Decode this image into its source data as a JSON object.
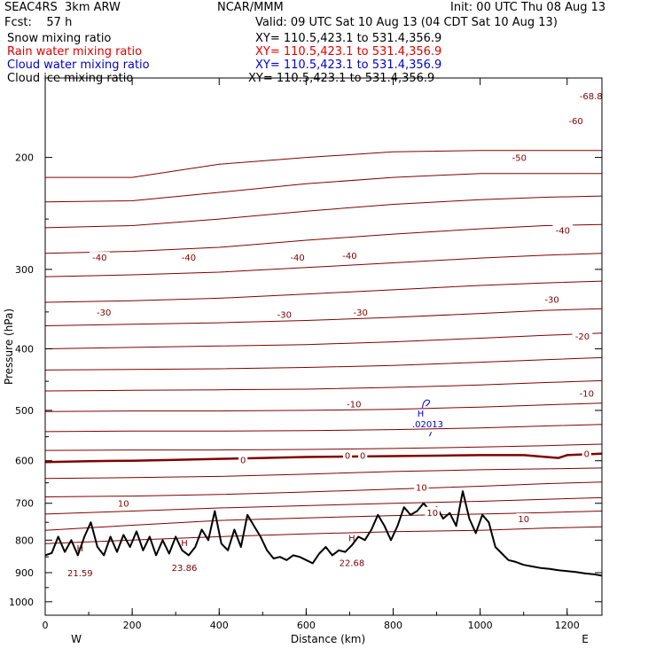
{
  "header": {
    "model": "SEAC4RS  3km ARW",
    "org": "NCAR/MMM",
    "init": "Init: 00 UTC Thu 08 Aug 13",
    "fcst": "Fcst:    57 h",
    "valid": "Valid: 09 UTC Sat 10 Aug 13 (04 CDT Sat 10 Aug 13)"
  },
  "legend": [
    {
      "name": "Snow mixing ratio",
      "xy": "XY= 110.5,423.1 to 531.4,356.9",
      "color": "#000000"
    },
    {
      "name": "Rain water mixing ratio",
      "xy": "XY= 110.5,423.1 to 531.4,356.9",
      "color": "#e00000"
    },
    {
      "name": "Cloud water mixing ratio",
      "xy": "XY= 110.5,423.1 to 531.4,356.9",
      "color": "#0000d0"
    },
    {
      "name": "Cloud ice mixing ratio",
      "xy": "XY= 110.5,423.1 to 531.4,356.9",
      "color": "#000000"
    }
  ],
  "chart_data": {
    "type": "line",
    "xlabel": "Distance (km)",
    "ylabel": "Pressure (hPa)",
    "xlim": [
      0,
      1280
    ],
    "ylim": [
      150,
      1050
    ],
    "y_scale": "log",
    "x_ticks": [
      "0",
      "200",
      "400",
      "600",
      "800",
      "1000",
      "1200"
    ],
    "y_ticks": [
      "200",
      "300",
      "400",
      "500",
      "600",
      "700",
      "800",
      "900",
      "1000"
    ],
    "x_end_labels": {
      "left": "W",
      "right": "E"
    },
    "isotherm_color": "#800000",
    "isotherms": [
      {
        "x": [
          0,
          200,
          400,
          600,
          800,
          1000,
          1150,
          1280
        ],
        "y": [
          215,
          215,
          205,
          200,
          196,
          195,
          195,
          195
        ]
      },
      {
        "x": [
          0,
          200,
          400,
          600,
          800,
          1000,
          1150,
          1280
        ],
        "y": [
          235,
          234,
          227,
          220,
          215,
          212,
          212,
          212
        ]
      },
      {
        "x": [
          0,
          200,
          400,
          600,
          800,
          1000,
          1150,
          1280
        ],
        "y": [
          258,
          256,
          250,
          243,
          237,
          233,
          231,
          230
        ]
      },
      {
        "x": [
          0,
          200,
          400,
          600,
          800,
          1000,
          1150,
          1280
        ],
        "y": [
          283,
          281,
          277,
          270,
          264,
          259,
          256,
          255
        ]
      },
      {
        "x": [
          0,
          200,
          400,
          600,
          800,
          1000,
          1150,
          1280
        ],
        "y": [
          308,
          306,
          303,
          298,
          293,
          288,
          285,
          283
        ]
      },
      {
        "x": [
          0,
          200,
          400,
          600,
          800,
          1000,
          1150,
          1280
        ],
        "y": [
          338,
          336,
          333,
          328,
          323,
          318,
          315,
          313
        ]
      },
      {
        "x": [
          0,
          200,
          400,
          600,
          800,
          1000,
          1150,
          1280
        ],
        "y": [
          368,
          366,
          364,
          361,
          357,
          352,
          348,
          346
        ]
      },
      {
        "x": [
          0,
          200,
          400,
          600,
          800,
          1000,
          1150,
          1280
        ],
        "y": [
          400,
          398,
          396,
          394,
          390,
          385,
          381,
          378
        ]
      },
      {
        "x": [
          0,
          200,
          400,
          600,
          800,
          1000,
          1150,
          1280
        ],
        "y": [
          432,
          431,
          430,
          428,
          425,
          420,
          416,
          413
        ]
      },
      {
        "x": [
          0,
          200,
          400,
          600,
          800,
          1000,
          1150,
          1280
        ],
        "y": [
          466,
          465,
          464,
          463,
          460,
          456,
          452,
          449
        ]
      },
      {
        "x": [
          0,
          200,
          400,
          600,
          800,
          1000,
          1150,
          1280
        ],
        "y": [
          502,
          501,
          501,
          500,
          498,
          494,
          490,
          487
        ]
      },
      {
        "x": [
          0,
          200,
          400,
          600,
          800,
          1000,
          1150,
          1280
        ],
        "y": [
          540,
          539,
          539,
          538,
          536,
          533,
          529,
          526
        ]
      },
      {
        "x": [
          0,
          200,
          400,
          600,
          800,
          1000,
          1150,
          1280
        ],
        "y": [
          578,
          577,
          577,
          576,
          574,
          571,
          568,
          565
        ]
      },
      {
        "x": [
          0,
          200,
          400,
          600,
          800,
          1000,
          1150,
          1280
        ],
        "y": [
          640,
          638,
          635,
          630,
          624,
          620,
          618,
          616
        ]
      },
      {
        "x": [
          0,
          200,
          400,
          600,
          800,
          1000,
          1150,
          1280
        ],
        "y": [
          684,
          682,
          678,
          672,
          665,
          658,
          652,
          648
        ]
      },
      {
        "x": [
          0,
          200,
          400,
          600,
          800,
          1000,
          1150,
          1280
        ],
        "y": [
          728,
          720,
          712,
          706,
          700,
          695,
          690,
          686
        ]
      },
      {
        "x": [
          0,
          200,
          400,
          600,
          800,
          1000,
          1150,
          1280
        ],
        "y": [
          772,
          758,
          745,
          738,
          732,
          728,
          724,
          720
        ]
      },
      {
        "x": [
          0,
          200,
          400,
          600,
          800,
          1000,
          1150,
          1280
        ],
        "y": [
          810,
          800,
          790,
          782,
          776,
          772,
          766,
          762
        ]
      }
    ],
    "freezing_level": {
      "x": [
        0,
        100,
        200,
        300,
        400,
        500,
        600,
        700,
        800,
        900,
        1000,
        1100,
        1180,
        1200,
        1280
      ],
      "y": [
        603,
        601,
        600,
        598,
        596,
        594,
        592,
        591,
        590,
        589,
        588,
        588,
        594,
        588,
        585
      ]
    },
    "terrain": {
      "x": [
        0,
        15,
        30,
        45,
        60,
        75,
        90,
        105,
        120,
        135,
        150,
        165,
        180,
        195,
        210,
        225,
        240,
        255,
        270,
        285,
        300,
        315,
        330,
        345,
        360,
        375,
        390,
        405,
        420,
        435,
        450,
        465,
        480,
        495,
        510,
        525,
        540,
        555,
        570,
        585,
        600,
        615,
        630,
        645,
        660,
        675,
        690,
        705,
        720,
        735,
        750,
        765,
        780,
        795,
        810,
        825,
        840,
        855,
        870,
        885,
        900,
        915,
        930,
        945,
        960,
        975,
        990,
        1005,
        1020,
        1035,
        1050,
        1065,
        1080,
        1100,
        1120,
        1140,
        1160,
        1180,
        1200,
        1220,
        1240,
        1260,
        1280
      ],
      "y": [
        845,
        838,
        790,
        835,
        800,
        845,
        790,
        750,
        820,
        845,
        790,
        835,
        785,
        820,
        775,
        830,
        790,
        845,
        800,
        840,
        790,
        830,
        845,
        820,
        770,
        800,
        720,
        810,
        830,
        770,
        820,
        730,
        760,
        790,
        830,
        855,
        850,
        860,
        845,
        850,
        860,
        870,
        840,
        820,
        845,
        830,
        835,
        815,
        790,
        800,
        770,
        730,
        760,
        800,
        760,
        710,
        730,
        720,
        700,
        720,
        710,
        740,
        725,
        760,
        670,
        740,
        780,
        730,
        750,
        820,
        840,
        860,
        865,
        875,
        880,
        885,
        888,
        892,
        895,
        898,
        902,
        905,
        910
      ]
    },
    "contour_labels": [
      {
        "text": "-68.8",
        "x": 1255,
        "y": 160
      },
      {
        "text": "-60",
        "x": 1220,
        "y": 175
      },
      {
        "text": "-50",
        "x": 1090,
        "y": 200
      },
      {
        "text": "-40",
        "x": 125,
        "y": 287
      },
      {
        "text": "-40",
        "x": 330,
        "y": 287
      },
      {
        "text": "-40",
        "x": 580,
        "y": 287
      },
      {
        "text": "-40",
        "x": 700,
        "y": 285
      },
      {
        "text": "-40",
        "x": 1190,
        "y": 260
      },
      {
        "text": "-30",
        "x": 135,
        "y": 350
      },
      {
        "text": "-30",
        "x": 550,
        "y": 353
      },
      {
        "text": "-30",
        "x": 725,
        "y": 350
      },
      {
        "text": "-30",
        "x": 1165,
        "y": 334
      },
      {
        "text": "-20",
        "x": 1235,
        "y": 382
      },
      {
        "text": "-10",
        "x": 710,
        "y": 488
      },
      {
        "text": "-10",
        "x": 1245,
        "y": 470
      },
      {
        "text": "0",
        "x": 455,
        "y": 598
      },
      {
        "text": "0",
        "x": 695,
        "y": 588
      },
      {
        "text": "0",
        "x": 730,
        "y": 588
      },
      {
        "text": "0",
        "x": 1245,
        "y": 584
      },
      {
        "text": "10",
        "x": 865,
        "y": 660
      },
      {
        "text": "10",
        "x": 180,
        "y": 700
      },
      {
        "text": "10",
        "x": 890,
        "y": 723
      },
      {
        "text": "10",
        "x": 1100,
        "y": 740
      }
    ],
    "extrema_labels": [
      {
        "symbol": "H",
        "value": "21.59",
        "x": 80,
        "y": 838
      },
      {
        "symbol": "H",
        "value": "23.86",
        "x": 320,
        "y": 822
      },
      {
        "symbol": "H",
        "value": "22.68",
        "x": 705,
        "y": 808
      }
    ],
    "cloud_water": {
      "symbol": "H",
      "value": ".02013",
      "x": 855,
      "y": 502,
      "color": "#0000d0"
    }
  }
}
